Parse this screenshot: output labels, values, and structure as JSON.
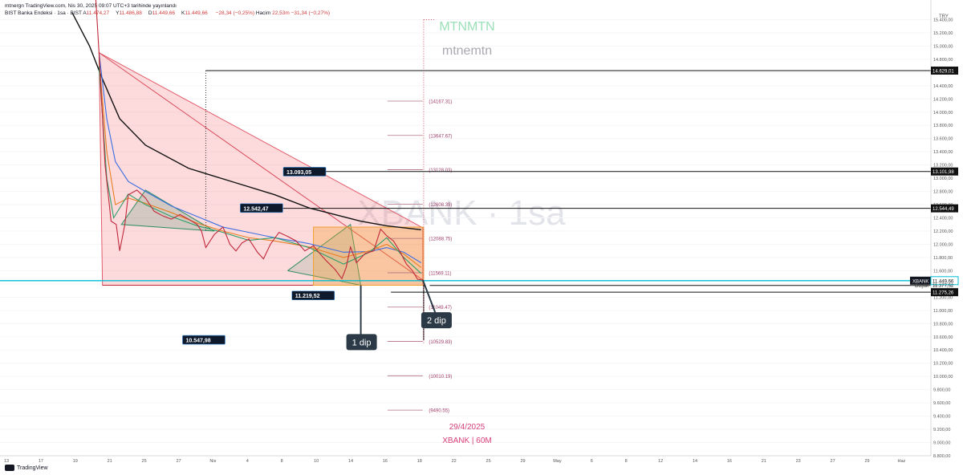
{
  "header": {
    "publisher_line": "mtnergn TradingView.com, Nis 30, 2025 09:07 UTC+3 tarihinde yayınlandı",
    "symbol_line": "BIST Banka Endeksi · 1sa · BIST",
    "ohlc": [
      {
        "label": "A",
        "value": "11.474,27"
      },
      {
        "label": "Y",
        "value": "11.486,88"
      },
      {
        "label": "D",
        "value": "11.449,66"
      },
      {
        "label": "K",
        "value": "11.449,66"
      }
    ],
    "change": "−28,34 (−0,25%)",
    "volume_label": "Hacim",
    "volume_value": "22,53m",
    "volume_change": "−31,34 (−0,27%)"
  },
  "watermarks": {
    "top1": "MTNMTN",
    "top2": "mtnemtn",
    "symbol": "XBANK · 1sa"
  },
  "footer": {
    "brand": "TradingView",
    "date": "29/4/2025",
    "symbol_tf": "XBANK | 60M"
  },
  "chart_data": {
    "type": "line",
    "title": "BIST Banka Endeksi · 1sa · BIST",
    "currency": "TRY",
    "xlabel": "",
    "ylabel": "",
    "ylim": [
      8800,
      15600
    ],
    "x_ticks": [
      "13",
      "17",
      "19",
      "21",
      "25",
      "27",
      "Nis",
      "4",
      "8",
      "10",
      "14",
      "16",
      "18",
      "22",
      "25",
      "29",
      "May",
      "6",
      "8",
      "12",
      "14",
      "16",
      "21",
      "23",
      "27",
      "29",
      "Haz"
    ],
    "y_ticks": [
      "15.400,00",
      "15.200,00",
      "15.000,00",
      "14.800,00",
      "14.600,00",
      "14.400,00",
      "14.200,00",
      "14.000,00",
      "13.800,00",
      "13.600,00",
      "13.400,00",
      "13.200,00",
      "13.000,00",
      "12.800,00",
      "12.600,00",
      "12.400,00",
      "12.200,00",
      "12.000,00",
      "11.800,00",
      "11.600,00",
      "11.400,00",
      "11.200,00",
      "11.000,00",
      "10.800,00",
      "10.600,00",
      "10.400,00",
      "10.200,00",
      "10.000,00",
      "9.800,00",
      "9.600,00",
      "9.400,00",
      "9.200,00",
      "9.000,00",
      "8.800,00"
    ],
    "price_path": [
      [
        19,
        16200
      ],
      [
        19.6,
        14900
      ],
      [
        20.3,
        13200
      ],
      [
        21.0,
        12350
      ],
      [
        21.6,
        12300
      ],
      [
        22.0,
        11900
      ],
      [
        22.6,
        12300
      ],
      [
        23.0,
        12750
      ],
      [
        24.0,
        12820
      ],
      [
        25.0,
        12700
      ],
      [
        26.0,
        12500
      ],
      [
        27.0,
        12430
      ],
      [
        28.0,
        12380
      ],
      [
        29.0,
        12450
      ],
      [
        30.0,
        12380
      ],
      [
        31.0,
        12300
      ],
      [
        31.5,
        12200
      ],
      [
        32.0,
        11950
      ],
      [
        33.0,
        12150
      ],
      [
        34.0,
        12260
      ],
      [
        34.8,
        12000
      ],
      [
        35.5,
        11900
      ],
      [
        36.2,
        12020
      ],
      [
        37.0,
        12080
      ],
      [
        38.0,
        11880
      ],
      [
        38.7,
        11780
      ],
      [
        39.5,
        12000
      ],
      [
        40.5,
        12180
      ],
      [
        41.5,
        12120
      ],
      [
        42.5,
        12050
      ],
      [
        43.5,
        11900
      ],
      [
        44.5,
        11980
      ],
      [
        45.3,
        11850
      ],
      [
        46.0,
        11750
      ],
      [
        47.0,
        11620
      ],
      [
        47.8,
        11480
      ],
      [
        48.3,
        11650
      ],
      [
        48.8,
        11960
      ],
      [
        49.5,
        11720
      ],
      [
        50.5,
        11860
      ],
      [
        51.5,
        11900
      ],
      [
        52.3,
        12230
      ],
      [
        53.0,
        12130
      ],
      [
        53.8,
        12050
      ],
      [
        54.5,
        11900
      ],
      [
        55.3,
        11700
      ],
      [
        56.0,
        11600
      ],
      [
        56.6,
        11470
      ],
      [
        57.2,
        11460
      ]
    ],
    "moving_averages": [
      {
        "points": [
          [
            16.5,
            15500
          ],
          [
            18.5,
            15000
          ],
          [
            20,
            14500
          ],
          [
            22,
            13900
          ],
          [
            25,
            13500
          ],
          [
            30,
            13150
          ],
          [
            35,
            12950
          ],
          [
            40,
            12750
          ],
          [
            44,
            12550
          ],
          [
            47,
            12450
          ],
          [
            50,
            12350
          ],
          [
            53,
            12280
          ],
          [
            57,
            12220
          ]
        ],
        "color": "#111111"
      },
      {
        "points": [
          [
            19.6,
            14900
          ],
          [
            20.5,
            13900
          ],
          [
            21.5,
            13250
          ],
          [
            23,
            12950
          ],
          [
            25,
            12800
          ],
          [
            28,
            12580
          ],
          [
            31,
            12420
          ],
          [
            34,
            12260
          ],
          [
            37,
            12180
          ],
          [
            40,
            12100
          ],
          [
            44,
            12010
          ],
          [
            48,
            11880
          ],
          [
            51,
            11890
          ],
          [
            53,
            11950
          ],
          [
            55,
            11880
          ],
          [
            57,
            11720
          ]
        ],
        "color": "#3b6ee0"
      },
      {
        "points": [
          [
            19.6,
            14800
          ],
          [
            20.5,
            13400
          ],
          [
            21.5,
            12600
          ],
          [
            23,
            12700
          ],
          [
            25,
            12620
          ],
          [
            28,
            12480
          ],
          [
            31,
            12320
          ],
          [
            34,
            12200
          ],
          [
            37,
            12100
          ],
          [
            40,
            12050
          ],
          [
            44,
            11960
          ],
          [
            48,
            11800
          ],
          [
            51,
            11900
          ],
          [
            53,
            12000
          ],
          [
            55,
            11850
          ],
          [
            57,
            11650
          ]
        ],
        "color": "#e67e22"
      },
      {
        "points": [
          [
            19.6,
            14700
          ],
          [
            20.5,
            13000
          ],
          [
            21.3,
            12400
          ],
          [
            23,
            12760
          ],
          [
            25,
            12600
          ],
          [
            28,
            12420
          ],
          [
            31,
            12280
          ],
          [
            34,
            12180
          ],
          [
            37,
            12060
          ],
          [
            40,
            12100
          ],
          [
            44,
            11950
          ],
          [
            48,
            11700
          ],
          [
            51,
            11880
          ],
          [
            53,
            12100
          ],
          [
            55,
            11800
          ],
          [
            57,
            11560
          ]
        ],
        "color": "#2e9e6a"
      }
    ],
    "horizontal_levels": [
      {
        "value": 14629.01,
        "label": "14.629,01"
      },
      {
        "value": 13101.98,
        "label": "13.101,98"
      },
      {
        "value": 12544.49,
        "label": "12.544,49"
      },
      {
        "value": 11449.66,
        "label": "11.449,66"
      },
      {
        "value": 11377.52,
        "label": "11.377,52"
      },
      {
        "value": 11275.26,
        "label": "11.275,26"
      }
    ],
    "price_tags": {
      "current_symbol": "XBANK",
      "current_value": "11.449,66",
      "second_label": "Düşük",
      "second_value": "11.377,52"
    },
    "annotations": [
      {
        "text": "13.093,05",
        "x": 41,
        "y": 13093.05
      },
      {
        "text": "12.542,47",
        "x": 36,
        "y": 12542.47
      },
      {
        "text": "11.219,52",
        "x": 42,
        "y": 11219.52
      },
      {
        "text": "10.547,98",
        "x": 29.3,
        "y": 10547.98
      }
    ],
    "callouts": [
      {
        "text": "1 dip",
        "x": 50,
        "y": 10520,
        "anchor": [
          50,
          11380
        ]
      },
      {
        "text": "2 dip",
        "x": 58.7,
        "y": 10850,
        "anchor": [
          57.2,
          11460
        ]
      }
    ],
    "fib_levels": [
      {
        "value": 14167.31,
        "label": "(14167.31)"
      },
      {
        "value": 13647.67,
        "label": "(13647.67)"
      },
      {
        "value": 13128.03,
        "label": "(13128.03)"
      },
      {
        "value": 12608.39,
        "label": "(12608.39)"
      },
      {
        "value": 12088.75,
        "label": "(12088.75)"
      },
      {
        "value": 11569.11,
        "label": "(11569.11)"
      },
      {
        "value": 11049.47,
        "label": "(11049.47)"
      },
      {
        "value": 10529.83,
        "label": "(10529.83)"
      },
      {
        "value": 10010.19,
        "label": "(10010.19)"
      },
      {
        "value": 9490.55,
        "label": "(9490.55)"
      }
    ]
  }
}
